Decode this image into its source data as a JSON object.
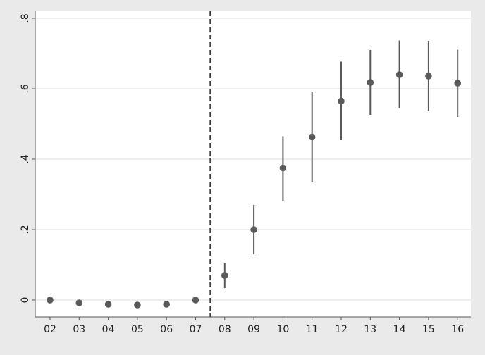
{
  "chart_data": {
    "type": "scatter",
    "subtype": "coefficient plot with confidence intervals",
    "title": "",
    "xlabel": "",
    "ylabel": "",
    "categories": [
      "02",
      "03",
      "04",
      "05",
      "06",
      "07",
      "08",
      "09",
      "10",
      "11",
      "12",
      "13",
      "14",
      "15",
      "16"
    ],
    "values": [
      0.0,
      -0.008,
      -0.012,
      -0.014,
      -0.012,
      0.0,
      0.07,
      0.2,
      0.375,
      0.463,
      0.565,
      0.618,
      0.64,
      0.636,
      0.616
    ],
    "ci_low": [
      -0.002,
      -0.01,
      -0.02,
      -0.022,
      -0.016,
      -0.002,
      0.034,
      0.13,
      0.282,
      0.336,
      0.454,
      0.526,
      0.545,
      0.537,
      0.52
    ],
    "ci_high": [
      0.002,
      -0.005,
      -0.005,
      -0.006,
      -0.008,
      0.003,
      0.104,
      0.27,
      0.465,
      0.59,
      0.677,
      0.71,
      0.737,
      0.736,
      0.711
    ],
    "ylim": [
      -0.04,
      0.82
    ],
    "yticks": [
      0,
      0.2,
      0.4,
      0.6,
      0.8
    ],
    "ytick_labels": [
      "0",
      ".2",
      ".4",
      ".6",
      ".8"
    ],
    "reference_line": {
      "style": "dashed",
      "between": [
        "07",
        "08"
      ]
    },
    "grid": true,
    "legend": "none",
    "colors": {
      "outer_background": "#eaeaea",
      "plot_background": "#ffffff",
      "grid": "#dcdcdc",
      "marker": "#5a5a5a",
      "ci_line": "#5a5a5a",
      "reference_line": "#333333",
      "axis": "#555555"
    }
  }
}
